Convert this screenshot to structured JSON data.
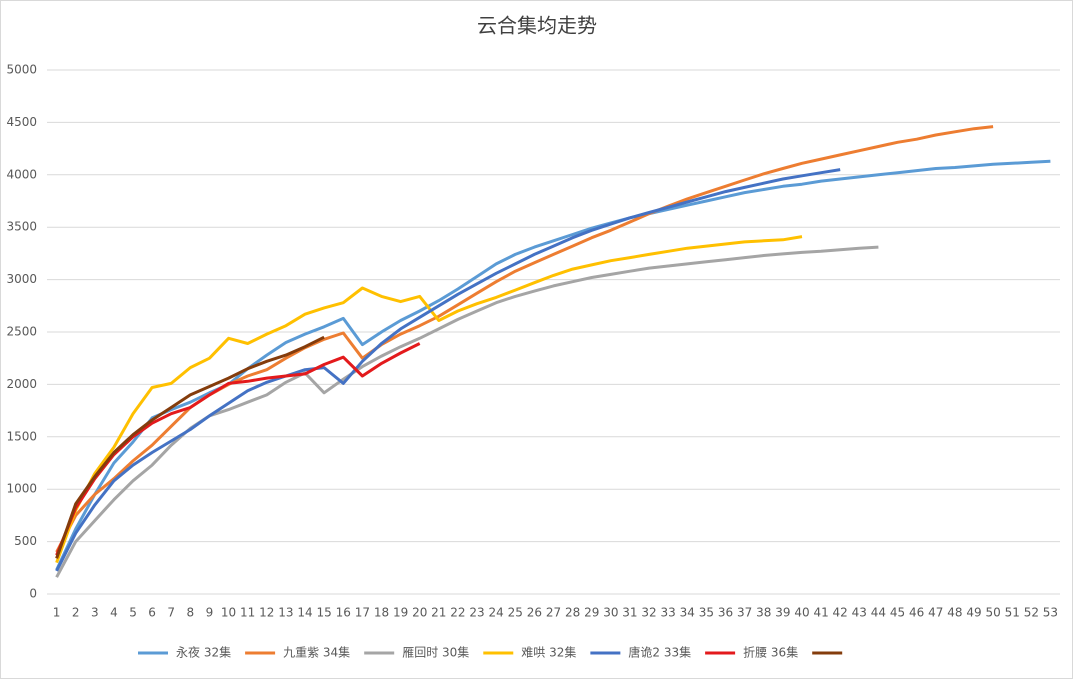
{
  "chart_data": {
    "type": "line",
    "title": "云合集均走势",
    "categories": [
      1,
      2,
      3,
      4,
      5,
      6,
      7,
      8,
      9,
      10,
      11,
      12,
      13,
      14,
      15,
      16,
      17,
      18,
      19,
      20,
      21,
      22,
      23,
      24,
      25,
      26,
      27,
      28,
      29,
      30,
      31,
      32,
      33,
      34,
      35,
      36,
      37,
      38,
      39,
      40,
      41,
      42,
      43,
      44,
      45,
      46,
      47,
      48,
      49,
      50,
      51,
      52,
      53
    ],
    "ylim": [
      0,
      5000
    ],
    "yticks": [
      0,
      500,
      1000,
      1500,
      2000,
      2500,
      3000,
      3500,
      4000,
      4500,
      5000
    ],
    "grid": true,
    "series": [
      {
        "name": "永夜 32集",
        "color": "#5b9bd5",
        "values": [
          230,
          620,
          950,
          1250,
          1450,
          1680,
          1760,
          1830,
          1920,
          2000,
          2150,
          2280,
          2400,
          2480,
          2550,
          2630,
          2380,
          2500,
          2610,
          2700,
          2800,
          2910,
          3030,
          3150,
          3240,
          3310,
          3370,
          3430,
          3490,
          3540,
          3590,
          3630,
          3670,
          3710,
          3750,
          3790,
          3830,
          3860,
          3890,
          3910,
          3940,
          3960,
          3980,
          4000,
          4020,
          4040,
          4060,
          4070,
          4085,
          4100,
          4110,
          4120,
          4130
        ]
      },
      {
        "name": "九重紫 34集",
        "color": "#ed7d31",
        "values": [
          400,
          750,
          950,
          1100,
          1270,
          1420,
          1600,
          1780,
          1900,
          2000,
          2080,
          2140,
          2250,
          2350,
          2430,
          2490,
          2250,
          2380,
          2480,
          2560,
          2650,
          2760,
          2870,
          2980,
          3080,
          3160,
          3240,
          3320,
          3400,
          3470,
          3550,
          3630,
          3700,
          3770,
          3830,
          3890,
          3950,
          4010,
          4060,
          4110,
          4150,
          4190,
          4230,
          4270,
          4310,
          4340,
          4380,
          4410,
          4440,
          4460,
          null,
          null,
          null
        ]
      },
      {
        "name": "雁回时 30集",
        "color": "#a5a5a5",
        "values": [
          160,
          500,
          700,
          900,
          1080,
          1230,
          1420,
          1580,
          1700,
          1760,
          1830,
          1900,
          2020,
          2110,
          1920,
          2050,
          2170,
          2270,
          2360,
          2440,
          2530,
          2620,
          2700,
          2780,
          2840,
          2890,
          2940,
          2980,
          3020,
          3050,
          3080,
          3110,
          3130,
          3150,
          3170,
          3190,
          3210,
          3230,
          3245,
          3260,
          3270,
          3285,
          3300,
          3310,
          null,
          null,
          null,
          null,
          null,
          null,
          null,
          null,
          null
        ]
      },
      {
        "name": "难哄 32集",
        "color": "#ffc000",
        "values": [
          300,
          800,
          1150,
          1400,
          1720,
          1970,
          2010,
          2160,
          2250,
          2440,
          2390,
          2480,
          2560,
          2670,
          2730,
          2780,
          2920,
          2840,
          2790,
          2840,
          2610,
          2700,
          2770,
          2830,
          2900,
          2970,
          3040,
          3100,
          3140,
          3180,
          3210,
          3240,
          3270,
          3300,
          3320,
          3340,
          3360,
          3370,
          3380,
          3410,
          null,
          null,
          null,
          null,
          null,
          null,
          null,
          null,
          null,
          null,
          null,
          null,
          null
        ]
      },
      {
        "name": "唐诡2 33集",
        "color": "#4472c4",
        "values": [
          220,
          580,
          850,
          1080,
          1230,
          1350,
          1460,
          1570,
          1700,
          1820,
          1940,
          2020,
          2080,
          2140,
          2160,
          2010,
          2220,
          2390,
          2530,
          2640,
          2750,
          2860,
          2960,
          3060,
          3150,
          3240,
          3320,
          3400,
          3470,
          3530,
          3590,
          3640,
          3690,
          3740,
          3790,
          3840,
          3880,
          3920,
          3960,
          3990,
          4020,
          4050,
          null,
          null,
          null,
          null,
          null,
          null,
          null,
          null,
          null,
          null,
          null
        ]
      },
      {
        "name": "折腰 36集",
        "color": "#e31a1c",
        "values": [
          370,
          820,
          1100,
          1330,
          1500,
          1630,
          1720,
          1780,
          1900,
          2010,
          2030,
          2060,
          2080,
          2100,
          2190,
          2260,
          2080,
          2200,
          2300,
          2390,
          null,
          null,
          null,
          null,
          null,
          null,
          null,
          null,
          null,
          null,
          null,
          null,
          null,
          null,
          null,
          null,
          null,
          null,
          null,
          null,
          null,
          null,
          null,
          null,
          null,
          null,
          null,
          null,
          null,
          null,
          null,
          null,
          null
        ]
      },
      {
        "color": "#843c0c",
        "values": [
          340,
          860,
          1120,
          1350,
          1520,
          1660,
          1780,
          1900,
          1980,
          2060,
          2150,
          2220,
          2280,
          2360,
          2450,
          null,
          null,
          null,
          null,
          null,
          null,
          null,
          null,
          null,
          null,
          null,
          null,
          null,
          null,
          null,
          null,
          null,
          null,
          null,
          null,
          null,
          null,
          null,
          null,
          null,
          null,
          null,
          null,
          null,
          null,
          null,
          null,
          null,
          null,
          null,
          null,
          null,
          null
        ]
      }
    ]
  }
}
